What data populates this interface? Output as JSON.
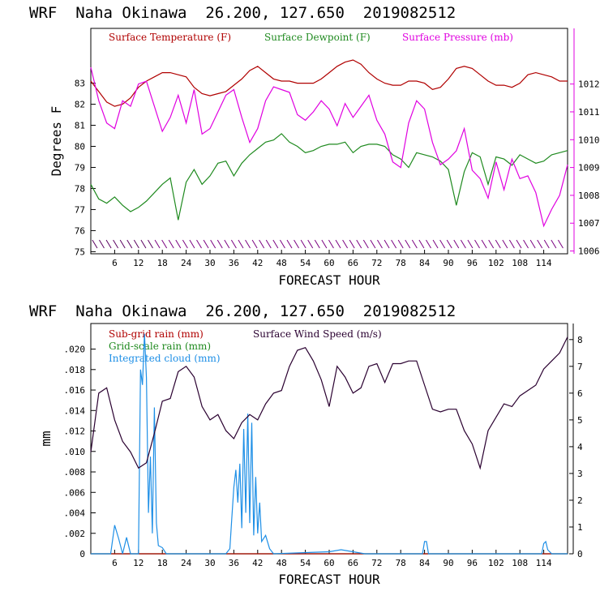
{
  "colors": {
    "temperature": "#b00000",
    "dewpoint": "#1f8a1f",
    "pressure": "#e000e0",
    "wind_speed": "#2a0030",
    "subgrid_rain": "#b00000",
    "gridscale_rain": "#1f8a1f",
    "cloud": "#1e8fe6",
    "axis": "#000000"
  },
  "chart_data": [
    {
      "type": "line",
      "title": "WRF  Naha Okinawa  26.200, 127.650  2019082512",
      "xlabel": "FORECAST HOUR",
      "ylabel": "Degrees F",
      "xlim": [
        0,
        120
      ],
      "ylim": [
        74.9,
        85.6
      ],
      "y2lim": [
        1005.9,
        1014.0
      ],
      "x_ticks": [
        6,
        12,
        18,
        24,
        30,
        36,
        42,
        48,
        54,
        60,
        66,
        72,
        78,
        84,
        90,
        96,
        102,
        108,
        114
      ],
      "y_ticks": [
        75,
        76,
        77,
        78,
        79,
        80,
        81,
        82,
        83
      ],
      "y2_ticks": [
        1006,
        1007,
        1008,
        1009,
        1010,
        1011,
        1012
      ],
      "wind_barbs": "row of wind barbs along the bottom of the plot, one per hour",
      "series": [
        {
          "name": "Surface Temperature (F)",
          "axis": "left",
          "x": [
            0,
            2,
            4,
            6,
            8,
            10,
            12,
            14,
            16,
            18,
            20,
            22,
            24,
            26,
            28,
            30,
            32,
            34,
            36,
            38,
            40,
            42,
            44,
            46,
            48,
            50,
            52,
            54,
            56,
            58,
            60,
            62,
            64,
            66,
            68,
            70,
            72,
            74,
            76,
            78,
            80,
            82,
            84,
            86,
            88,
            90,
            92,
            94,
            96,
            98,
            100,
            102,
            104,
            106,
            108,
            110,
            112,
            114,
            116,
            118,
            120
          ],
          "values": [
            83.1,
            82.6,
            82.1,
            81.9,
            82.0,
            82.3,
            82.8,
            83.1,
            83.3,
            83.5,
            83.5,
            83.4,
            83.3,
            82.8,
            82.5,
            82.4,
            82.5,
            82.6,
            82.9,
            83.2,
            83.6,
            83.8,
            83.5,
            83.2,
            83.1,
            83.1,
            83.0,
            83.0,
            83.0,
            83.2,
            83.5,
            83.8,
            84.0,
            84.1,
            83.9,
            83.5,
            83.2,
            83.0,
            82.9,
            82.9,
            83.1,
            83.1,
            83.0,
            82.7,
            82.8,
            83.2,
            83.7,
            83.8,
            83.7,
            83.4,
            83.1,
            82.9,
            82.9,
            82.8,
            83.0,
            83.4,
            83.5,
            83.4,
            83.3,
            83.1,
            83.1
          ]
        },
        {
          "name": "Surface Dewpoint (F)",
          "axis": "left",
          "x": [
            0,
            2,
            4,
            6,
            8,
            10,
            12,
            14,
            16,
            18,
            20,
            22,
            24,
            26,
            28,
            30,
            32,
            34,
            36,
            38,
            40,
            42,
            44,
            46,
            48,
            50,
            52,
            54,
            56,
            58,
            60,
            62,
            64,
            66,
            68,
            70,
            72,
            74,
            76,
            78,
            80,
            82,
            84,
            86,
            88,
            90,
            92,
            94,
            96,
            98,
            100,
            102,
            104,
            106,
            108,
            110,
            112,
            114,
            116,
            118,
            120
          ],
          "values": [
            78.2,
            77.5,
            77.3,
            77.6,
            77.2,
            76.9,
            77.1,
            77.4,
            77.8,
            78.2,
            78.5,
            76.5,
            78.3,
            78.9,
            78.2,
            78.6,
            79.2,
            79.3,
            78.6,
            79.2,
            79.6,
            79.9,
            80.2,
            80.3,
            80.6,
            80.2,
            80.0,
            79.7,
            79.8,
            80.0,
            80.1,
            80.1,
            80.2,
            79.7,
            80.0,
            80.1,
            80.1,
            80.0,
            79.6,
            79.4,
            79.0,
            79.7,
            79.6,
            79.5,
            79.3,
            78.9,
            77.2,
            78.8,
            79.7,
            79.5,
            78.2,
            79.5,
            79.4,
            79.1,
            79.6,
            79.4,
            79.2,
            79.3,
            79.6,
            79.7,
            79.8
          ]
        },
        {
          "name": "Surface Pressure (mb)",
          "axis": "right",
          "x": [
            0,
            2,
            4,
            6,
            8,
            10,
            12,
            14,
            16,
            18,
            20,
            22,
            24,
            26,
            28,
            30,
            32,
            34,
            36,
            38,
            40,
            42,
            44,
            46,
            48,
            50,
            52,
            54,
            56,
            58,
            60,
            62,
            64,
            66,
            68,
            70,
            72,
            74,
            76,
            78,
            80,
            82,
            84,
            86,
            88,
            90,
            92,
            94,
            96,
            98,
            100,
            102,
            104,
            106,
            108,
            110,
            112,
            114,
            116,
            118,
            120
          ],
          "values": [
            1012.6,
            1011.4,
            1010.6,
            1010.4,
            1011.4,
            1011.2,
            1012.0,
            1012.1,
            1011.2,
            1010.3,
            1010.8,
            1011.6,
            1010.6,
            1011.8,
            1010.2,
            1010.4,
            1011.0,
            1011.6,
            1011.8,
            1010.8,
            1009.9,
            1010.4,
            1011.4,
            1011.9,
            1011.8,
            1011.7,
            1010.9,
            1010.7,
            1011.0,
            1011.4,
            1011.1,
            1010.5,
            1011.3,
            1010.8,
            1011.2,
            1011.6,
            1010.7,
            1010.2,
            1009.2,
            1009.0,
            1010.6,
            1011.4,
            1011.1,
            1009.9,
            1009.1,
            1009.3,
            1009.6,
            1010.4,
            1008.9,
            1008.6,
            1007.9,
            1009.2,
            1008.2,
            1009.3,
            1008.6,
            1008.7,
            1008.1,
            1006.9,
            1007.5,
            1008.0,
            1009.1
          ]
        }
      ]
    },
    {
      "type": "line",
      "title": "WRF  Naha Okinawa  26.200, 127.650  2019082512",
      "xlabel": "FORECAST HOUR",
      "ylabel": "mm",
      "xlim": [
        0,
        120
      ],
      "ylim": [
        0,
        0.0225
      ],
      "y2lim": [
        0,
        8.6
      ],
      "x_ticks": [
        6,
        12,
        18,
        24,
        30,
        36,
        42,
        48,
        54,
        60,
        66,
        72,
        78,
        84,
        90,
        96,
        102,
        108,
        114
      ],
      "y_ticks": [
        "0",
        ".002",
        ".004",
        ".006",
        ".008",
        ".010",
        ".012",
        ".014",
        ".016",
        ".018",
        ".020"
      ],
      "y2_ticks": [
        0,
        1,
        2,
        3,
        4,
        5,
        6,
        7,
        8
      ],
      "legend": [
        "Sub-grid rain (mm)",
        "Surface Wind Speed (m/s)",
        "Grid-scale rain (mm)",
        "Integrated cloud (mm)"
      ],
      "series": [
        {
          "name": "Surface Wind Speed (m/s)",
          "axis": "right",
          "x": [
            0,
            2,
            4,
            6,
            8,
            10,
            12,
            14,
            16,
            18,
            20,
            22,
            24,
            26,
            28,
            30,
            32,
            34,
            36,
            38,
            40,
            42,
            44,
            46,
            48,
            50,
            52,
            54,
            56,
            58,
            60,
            62,
            64,
            66,
            68,
            70,
            72,
            74,
            76,
            78,
            80,
            82,
            84,
            86,
            88,
            90,
            92,
            94,
            96,
            98,
            100,
            102,
            104,
            106,
            108,
            110,
            112,
            114,
            116,
            118,
            120
          ],
          "values": [
            3.8,
            6.0,
            6.2,
            5.0,
            4.2,
            3.8,
            3.2,
            3.4,
            4.5,
            5.7,
            5.8,
            6.8,
            7.0,
            6.6,
            5.5,
            5.0,
            5.2,
            4.6,
            4.3,
            4.9,
            5.2,
            5.0,
            5.6,
            6.0,
            6.1,
            7.0,
            7.6,
            7.7,
            7.2,
            6.5,
            5.5,
            7.0,
            6.6,
            6.0,
            6.2,
            7.0,
            7.1,
            6.4,
            7.1,
            7.1,
            7.2,
            7.2,
            6.3,
            5.4,
            5.3,
            5.4,
            5.4,
            4.6,
            4.1,
            3.2,
            4.6,
            5.1,
            5.6,
            5.5,
            5.9,
            6.1,
            6.3,
            6.9,
            7.2,
            7.5,
            8.1
          ]
        },
        {
          "name": "Integrated cloud (mm)",
          "axis": "left",
          "x": [
            0,
            5,
            6,
            7,
            8,
            9,
            10,
            11,
            12,
            12.5,
            13,
            13.5,
            14,
            14.5,
            15,
            15.5,
            16,
            16.5,
            17,
            18,
            19,
            20,
            34,
            35,
            35.5,
            36,
            36.5,
            37,
            37.5,
            38,
            38.5,
            39,
            39.5,
            40,
            40.5,
            41,
            41.5,
            42,
            42.5,
            43,
            44,
            45,
            46,
            60,
            63,
            66,
            69,
            83.5,
            84,
            84.5,
            85,
            113.5,
            114,
            114.5,
            115,
            116,
            120
          ],
          "values": [
            0,
            0,
            0.0028,
            0.0015,
            0,
            0.0016,
            0,
            0,
            0,
            0.018,
            0.0165,
            0.0215,
            0.0172,
            0.004,
            0.0095,
            0.002,
            0.0143,
            0.003,
            0.0008,
            0.0006,
            0,
            0,
            0,
            0.0005,
            0.0035,
            0.0065,
            0.0082,
            0.005,
            0.0088,
            0.0025,
            0.0122,
            0.004,
            0.0137,
            0.003,
            0.0128,
            0.0018,
            0.0075,
            0.002,
            0.005,
            0.0012,
            0.0018,
            0.0005,
            0,
            0.0002,
            0.0004,
            0.0002,
            0,
            0,
            0.0012,
            0.0012,
            0,
            0,
            0.001,
            0.0012,
            0.0004,
            0,
            0
          ]
        },
        {
          "name": "Sub-grid rain (mm)",
          "axis": "left",
          "x": [
            0,
            120
          ],
          "values": [
            0,
            0
          ]
        },
        {
          "name": "Grid-scale rain (mm)",
          "axis": "left",
          "x": [
            0,
            120
          ],
          "values": [
            0,
            0
          ]
        }
      ]
    }
  ]
}
